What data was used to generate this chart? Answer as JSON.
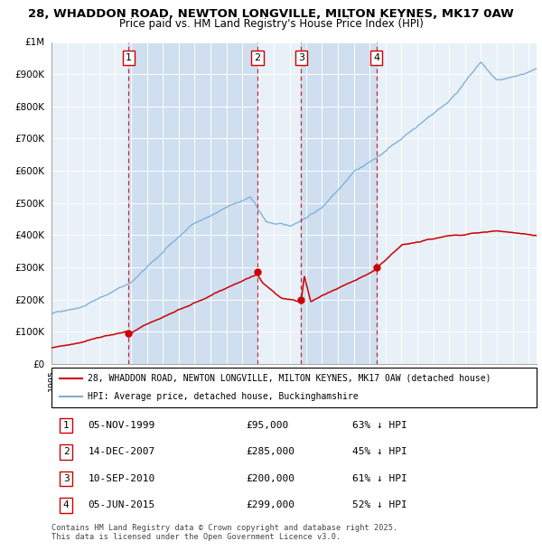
{
  "title1": "28, WHADDON ROAD, NEWTON LONGVILLE, MILTON KEYNES, MK17 0AW",
  "title2": "Price paid vs. HM Land Registry's House Price Index (HPI)",
  "red_label": "28, WHADDON ROAD, NEWTON LONGVILLE, MILTON KEYNES, MK17 0AW (detached house)",
  "blue_label": "HPI: Average price, detached house, Buckinghamshire",
  "footer": "Contains HM Land Registry data © Crown copyright and database right 2025.\nThis data is licensed under the Open Government Licence v3.0.",
  "transactions": [
    {
      "num": 1,
      "date": "05-NOV-1999",
      "price": 95000,
      "price_str": "£95,000",
      "pct": "63% ↓ HPI",
      "decimal_date": 1999.85
    },
    {
      "num": 2,
      "date": "14-DEC-2007",
      "price": 285000,
      "price_str": "£285,000",
      "pct": "45% ↓ HPI",
      "decimal_date": 2007.95
    },
    {
      "num": 3,
      "date": "10-SEP-2010",
      "price": 200000,
      "price_str": "£200,000",
      "pct": "61% ↓ HPI",
      "decimal_date": 2010.69
    },
    {
      "num": 4,
      "date": "05-JUN-2015",
      "price": 299000,
      "price_str": "£299,000",
      "pct": "52% ↓ HPI",
      "decimal_date": 2015.43
    }
  ],
  "ylim": [
    0,
    1000000
  ],
  "ytick_vals": [
    0,
    100000,
    200000,
    300000,
    400000,
    500000,
    600000,
    700000,
    800000,
    900000,
    1000000
  ],
  "ytick_labels": [
    "£0",
    "£100K",
    "£200K",
    "£300K",
    "£400K",
    "£500K",
    "£600K",
    "£700K",
    "£800K",
    "£900K",
    "£1M"
  ],
  "xmin": 1995.0,
  "xmax": 2025.5,
  "plot_bg": "#e8f0f8",
  "red_color": "#cc0000",
  "blue_color": "#7aadd4",
  "dashed_color": "#cc0000",
  "span_color": "#c5d8ee",
  "title1_fontsize": 9.5,
  "title2_fontsize": 8.5
}
